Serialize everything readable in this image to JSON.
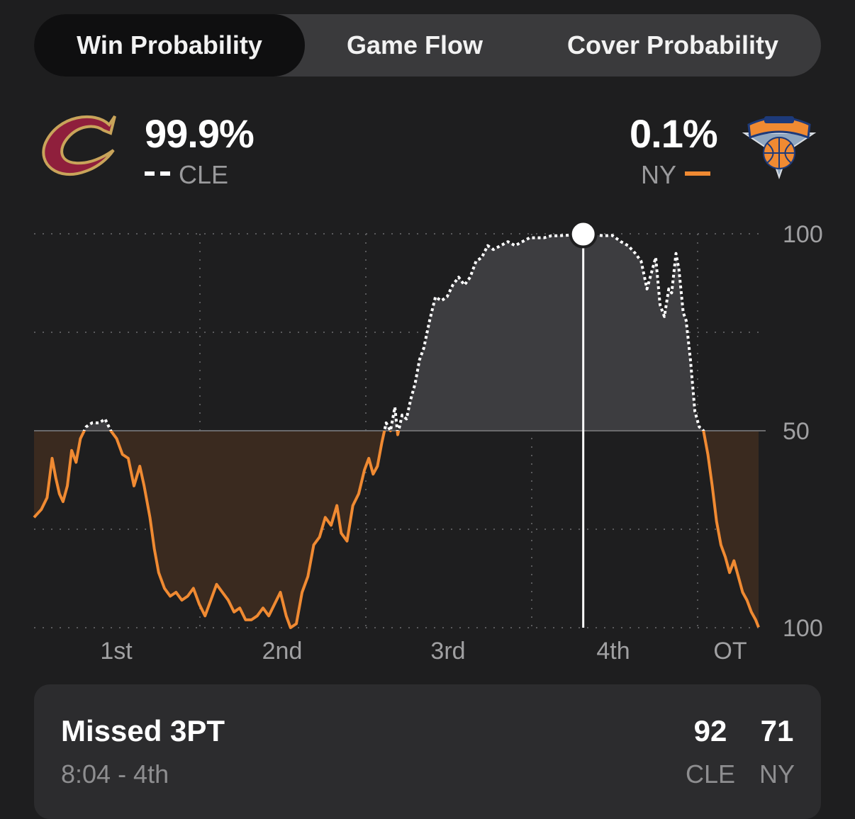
{
  "tabs": [
    {
      "label": "Win Probability",
      "active": true
    },
    {
      "label": "Game Flow",
      "active": false
    },
    {
      "label": "Cover Probability",
      "active": false
    }
  ],
  "home": {
    "team": "CLE",
    "pct": "99.9%",
    "logo": "cavaliers-c-logo",
    "line_style": "dashed-white",
    "color": "#9b2743"
  },
  "away": {
    "team": "NY",
    "pct": "0.1%",
    "logo": "knicks-logo",
    "line_style": "solid-orange",
    "color": "#f08a32"
  },
  "colors": {
    "accent_orange": "#f08a32",
    "cle_fill": "#3d3d40",
    "ny_fill": "#3a2a1f"
  },
  "chart_data": {
    "type": "area",
    "x_label": "",
    "y_label": "",
    "periods": [
      "1st",
      "2nd",
      "3rd",
      "4th",
      "OT"
    ],
    "ytick_labels": [
      "100",
      "50",
      "100"
    ],
    "y_range": [
      0,
      100
    ],
    "y_meaning": "CLE win probability %",
    "grid": "dotted",
    "marker": {
      "x": 0.758,
      "y": 99.9
    },
    "series": [
      {
        "name": "CLE",
        "values": [
          [
            0.0,
            28
          ],
          [
            0.01,
            30
          ],
          [
            0.018,
            33
          ],
          [
            0.025,
            43
          ],
          [
            0.03,
            38
          ],
          [
            0.035,
            34
          ],
          [
            0.04,
            32
          ],
          [
            0.046,
            36
          ],
          [
            0.052,
            45
          ],
          [
            0.058,
            42
          ],
          [
            0.064,
            48
          ],
          [
            0.072,
            51
          ],
          [
            0.08,
            52
          ],
          [
            0.09,
            52
          ],
          [
            0.098,
            53
          ],
          [
            0.106,
            50
          ],
          [
            0.114,
            48
          ],
          [
            0.122,
            44
          ],
          [
            0.13,
            43
          ],
          [
            0.138,
            36
          ],
          [
            0.146,
            41
          ],
          [
            0.152,
            36
          ],
          [
            0.16,
            28
          ],
          [
            0.166,
            20
          ],
          [
            0.172,
            14
          ],
          [
            0.18,
            10
          ],
          [
            0.188,
            8
          ],
          [
            0.196,
            9
          ],
          [
            0.204,
            7
          ],
          [
            0.212,
            8
          ],
          [
            0.22,
            10
          ],
          [
            0.228,
            6
          ],
          [
            0.236,
            3
          ],
          [
            0.244,
            7
          ],
          [
            0.252,
            11
          ],
          [
            0.26,
            9
          ],
          [
            0.268,
            7
          ],
          [
            0.276,
            4
          ],
          [
            0.284,
            5
          ],
          [
            0.292,
            2
          ],
          [
            0.3,
            2
          ],
          [
            0.308,
            3
          ],
          [
            0.316,
            5
          ],
          [
            0.324,
            3
          ],
          [
            0.332,
            6
          ],
          [
            0.34,
            9
          ],
          [
            0.348,
            3
          ],
          [
            0.354,
            0
          ],
          [
            0.362,
            1
          ],
          [
            0.37,
            9
          ],
          [
            0.378,
            13
          ],
          [
            0.386,
            21
          ],
          [
            0.394,
            23
          ],
          [
            0.402,
            28
          ],
          [
            0.41,
            26
          ],
          [
            0.418,
            31
          ],
          [
            0.424,
            24
          ],
          [
            0.432,
            22
          ],
          [
            0.44,
            31
          ],
          [
            0.448,
            34
          ],
          [
            0.456,
            40
          ],
          [
            0.462,
            43
          ],
          [
            0.468,
            39
          ],
          [
            0.474,
            41
          ],
          [
            0.48,
            47
          ],
          [
            0.486,
            52
          ],
          [
            0.492,
            50
          ],
          [
            0.498,
            56
          ],
          [
            0.502,
            49
          ],
          [
            0.508,
            54
          ],
          [
            0.514,
            53
          ],
          [
            0.52,
            58
          ],
          [
            0.526,
            62
          ],
          [
            0.532,
            68
          ],
          [
            0.538,
            71
          ],
          [
            0.546,
            78
          ],
          [
            0.554,
            84
          ],
          [
            0.562,
            83
          ],
          [
            0.57,
            84
          ],
          [
            0.578,
            87
          ],
          [
            0.586,
            89
          ],
          [
            0.594,
            87
          ],
          [
            0.602,
            89
          ],
          [
            0.61,
            93
          ],
          [
            0.618,
            94
          ],
          [
            0.626,
            97
          ],
          [
            0.634,
            96
          ],
          [
            0.644,
            97
          ],
          [
            0.654,
            98
          ],
          [
            0.664,
            97
          ],
          [
            0.674,
            98
          ],
          [
            0.684,
            99
          ],
          [
            0.694,
            99
          ],
          [
            0.704,
            99
          ],
          [
            0.714,
            99.5
          ],
          [
            0.724,
            99.5
          ],
          [
            0.734,
            99.6
          ],
          [
            0.746,
            99.8
          ],
          [
            0.758,
            99.9
          ],
          [
            0.772,
            99.8
          ],
          [
            0.786,
            99.5
          ],
          [
            0.798,
            99.6
          ],
          [
            0.81,
            98
          ],
          [
            0.82,
            97
          ],
          [
            0.83,
            95
          ],
          [
            0.838,
            93
          ],
          [
            0.846,
            86
          ],
          [
            0.852,
            90
          ],
          [
            0.858,
            94
          ],
          [
            0.864,
            82
          ],
          [
            0.87,
            79
          ],
          [
            0.876,
            86
          ],
          [
            0.88,
            85
          ],
          [
            0.886,
            95
          ],
          [
            0.89,
            91
          ],
          [
            0.896,
            80
          ],
          [
            0.9,
            78
          ],
          [
            0.906,
            68
          ],
          [
            0.912,
            55
          ],
          [
            0.918,
            51
          ],
          [
            0.924,
            50
          ],
          [
            0.93,
            44
          ],
          [
            0.936,
            36
          ],
          [
            0.942,
            27
          ],
          [
            0.948,
            21
          ],
          [
            0.954,
            18
          ],
          [
            0.96,
            14
          ],
          [
            0.966,
            17
          ],
          [
            0.972,
            13
          ],
          [
            0.978,
            9
          ],
          [
            0.984,
            7
          ],
          [
            0.99,
            4
          ],
          [
            0.996,
            2
          ],
          [
            1.0,
            0.1
          ]
        ]
      }
    ]
  },
  "play": {
    "title": "Missed 3PT",
    "time": "8:04 - 4th",
    "home_score": "92",
    "away_score": "71",
    "home_abbr": "CLE",
    "away_abbr": "NY"
  }
}
